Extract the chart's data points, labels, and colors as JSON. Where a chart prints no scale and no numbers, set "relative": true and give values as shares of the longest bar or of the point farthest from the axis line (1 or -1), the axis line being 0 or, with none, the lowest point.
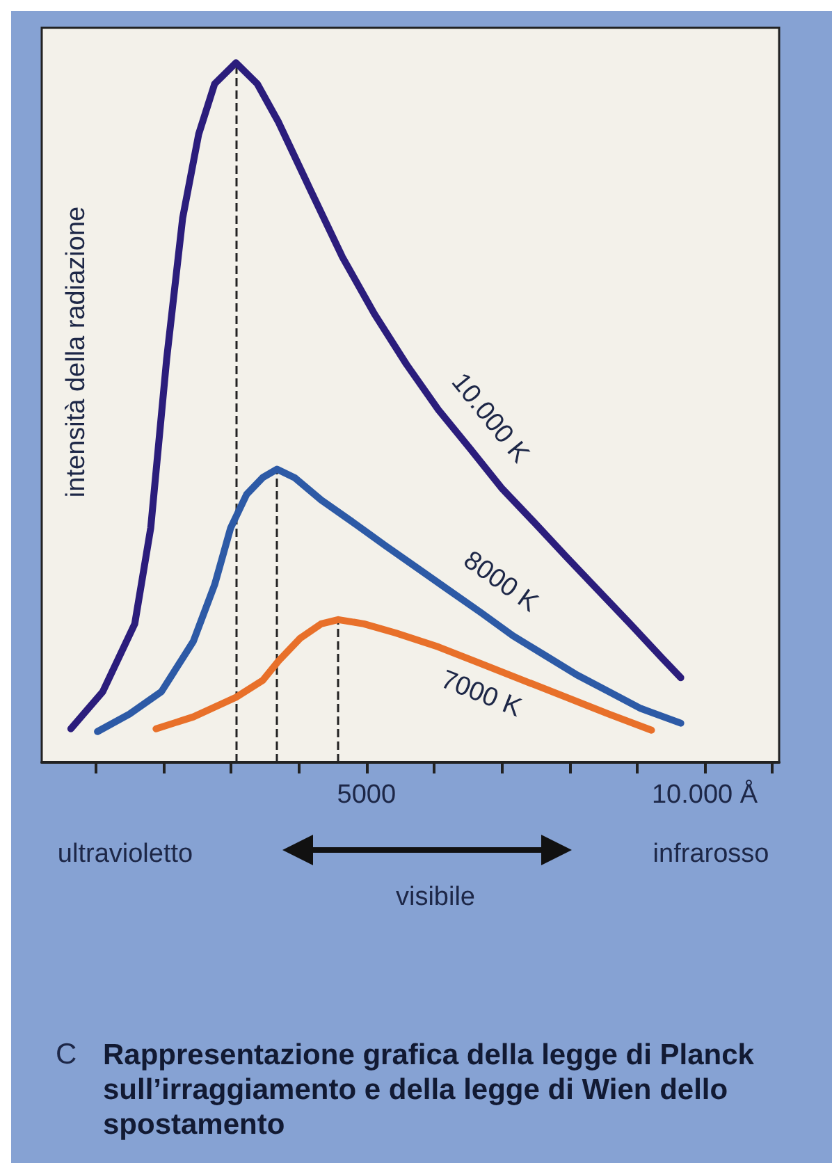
{
  "chart_data": {
    "type": "line",
    "title": "Rappresentazione grafica della legge di Planck sull’irraggiamento e della legge di Wien dello spostamento",
    "ylabel": "intensità della radiazione",
    "relative": true,
    "xlim": [
      200,
      11100
    ],
    "xticks": [
      {
        "value": 1000,
        "label": null
      },
      {
        "value": 2000,
        "label": null
      },
      {
        "value": 3000,
        "label": null
      },
      {
        "value": 4000,
        "label": null
      },
      5000,
      {
        "value": 6000,
        "label": null
      },
      {
        "value": 7000,
        "label": null
      },
      {
        "value": 8000,
        "label": null
      },
      {
        "value": 9000,
        "label": null
      },
      {
        "value": 10000,
        "label": "10.000 Å"
      },
      {
        "value": 11000,
        "label": null
      }
    ],
    "annotations": [
      "ultravioletto",
      "infrarosso",
      "visibile",
      "C"
    ],
    "ref_lines": [
      {
        "axis": "x",
        "value": 3071,
        "color": "#222222",
        "line_style": "dashed"
      },
      {
        "axis": "x",
        "value": 3677,
        "color": "#222222",
        "line_style": "dashed"
      },
      {
        "axis": "x",
        "value": 4583,
        "color": "#222222",
        "line_style": "dashed"
      }
    ],
    "line_style": "solid",
    "series": [
      {
        "name": "10.000 K",
        "color": "#2b1d7c",
        "x": [
          630,
          1102,
          1575,
          1811,
          2047,
          2283,
          2520,
          2756,
          3071,
          3386,
          3701,
          4173,
          4646,
          5118,
          5591,
          6063,
          6535,
          7008,
          7480,
          7953,
          8425,
          8898,
          9370,
          9646
        ],
        "values": [
          0.048,
          0.101,
          0.198,
          0.335,
          0.577,
          0.778,
          0.898,
          0.97,
          1.0,
          0.97,
          0.915,
          0.818,
          0.722,
          0.641,
          0.569,
          0.504,
          0.448,
          0.391,
          0.343,
          0.294,
          0.246,
          0.198,
          0.149,
          0.121
        ]
      },
      {
        "name": "8000 K",
        "color": "#2d5aa6",
        "x": [
          1024,
          1496,
          1969,
          2441,
          2756,
          2992,
          3228,
          3465,
          3677,
          3937,
          4331,
          4803,
          5276,
          5748,
          6220,
          6693,
          7165,
          7638,
          8110,
          8583,
          9055,
          9646
        ],
        "values": [
          0.044,
          0.069,
          0.101,
          0.173,
          0.254,
          0.335,
          0.383,
          0.407,
          0.419,
          0.407,
          0.375,
          0.343,
          0.31,
          0.278,
          0.246,
          0.214,
          0.181,
          0.153,
          0.125,
          0.101,
          0.077,
          0.056
        ]
      },
      {
        "name": "7000 K",
        "color": "#e8702a",
        "x": [
          1890,
          2441,
          3071,
          3465,
          3701,
          4016,
          4331,
          4583,
          4961,
          5433,
          6063,
          6693,
          7323,
          7953,
          8583,
          9213
        ],
        "values": [
          0.048,
          0.065,
          0.093,
          0.117,
          0.145,
          0.177,
          0.198,
          0.204,
          0.198,
          0.185,
          0.165,
          0.141,
          0.117,
          0.093,
          0.069,
          0.046
        ]
      }
    ]
  }
}
